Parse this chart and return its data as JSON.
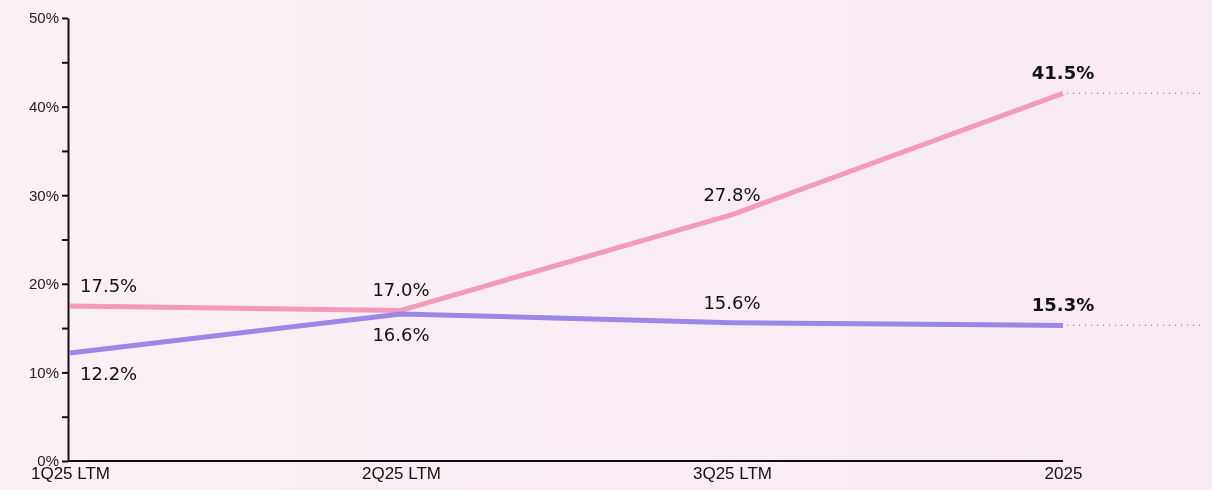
{
  "chart_data": {
    "type": "line",
    "categories": [
      "1Q25 LTM",
      "2Q25 LTM",
      "3Q25 LTM",
      "2025"
    ],
    "series": [
      {
        "color": "#f39bbb",
        "values": [
          17.5,
          17.0,
          27.8,
          41.5
        ]
      },
      {
        "color": "#9b87e6",
        "values": [
          12.2,
          16.6,
          15.6,
          15.3
        ]
      }
    ],
    "ylim": [
      0,
      50
    ],
    "yticks": [
      {
        "value": 0,
        "label": "0%"
      },
      {
        "value": 5,
        "label": null
      },
      {
        "value": 10,
        "label": "10%"
      },
      {
        "value": 15,
        "label": null
      },
      {
        "value": 20,
        "label": "20%"
      },
      {
        "value": 25,
        "label": null
      },
      {
        "value": 30,
        "label": "30%"
      },
      {
        "value": 35,
        "label": null
      },
      {
        "value": 40,
        "label": "40%"
      },
      {
        "value": 45,
        "label": null
      },
      {
        "value": 50,
        "label": "50%"
      }
    ],
    "value_labels": [
      [
        "17.5%",
        "17.0%",
        "27.8%",
        "41.5%"
      ],
      [
        "12.2%",
        "16.6%",
        "15.6%",
        "15.3%"
      ]
    ],
    "grid": false,
    "marker": "none",
    "line_style": "solid"
  }
}
